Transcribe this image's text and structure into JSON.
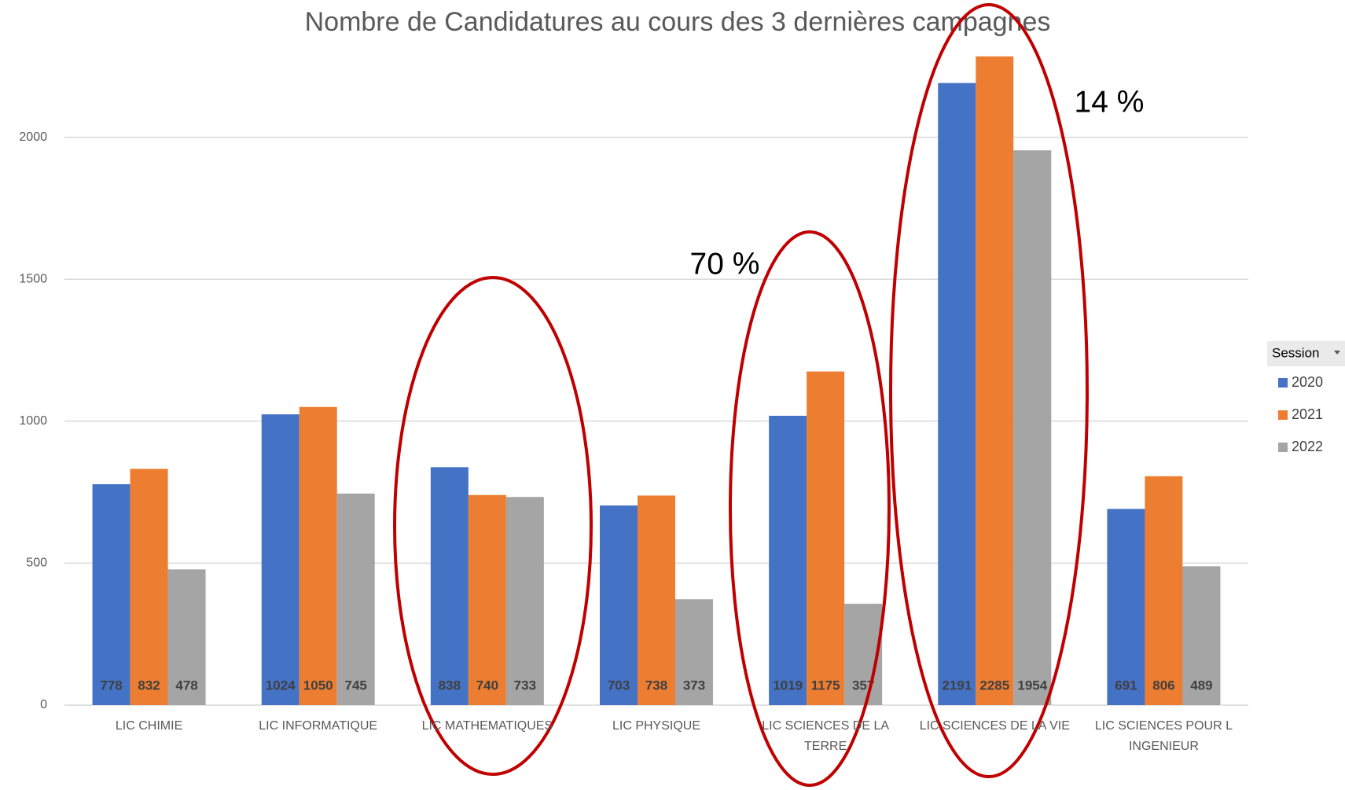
{
  "chart_data": {
    "type": "bar",
    "title": "Nombre de Candidatures au cours des 3 dernières campagnes",
    "categories": [
      "LIC CHIMIE",
      "LIC INFORMATIQUE",
      "LIC MATHEMATIQUES",
      "LIC PHYSIQUE",
      "LIC SCIENCES DE LA TERRE",
      "LIC SCIENCES DE LA VIE",
      "LIC SCIENCES POUR L INGENIEUR"
    ],
    "series": [
      {
        "name": "2020",
        "color": "#4472c4",
        "values": [
          778,
          1024,
          838,
          703,
          1019,
          2191,
          691
        ]
      },
      {
        "name": "2021",
        "color": "#ed7d31",
        "values": [
          832,
          1050,
          740,
          738,
          1175,
          2285,
          806
        ]
      },
      {
        "name": "2022",
        "color": "#a5a5a5",
        "values": [
          478,
          745,
          733,
          373,
          357,
          1954,
          489
        ]
      }
    ],
    "ylim": [
      0,
      2400
    ],
    "yticks": [
      0,
      500,
      1000,
      1500,
      2000
    ],
    "grid": true,
    "legend": {
      "title": "Session",
      "position": "right"
    },
    "annotations": [
      "70 %",
      "14 %"
    ]
  }
}
